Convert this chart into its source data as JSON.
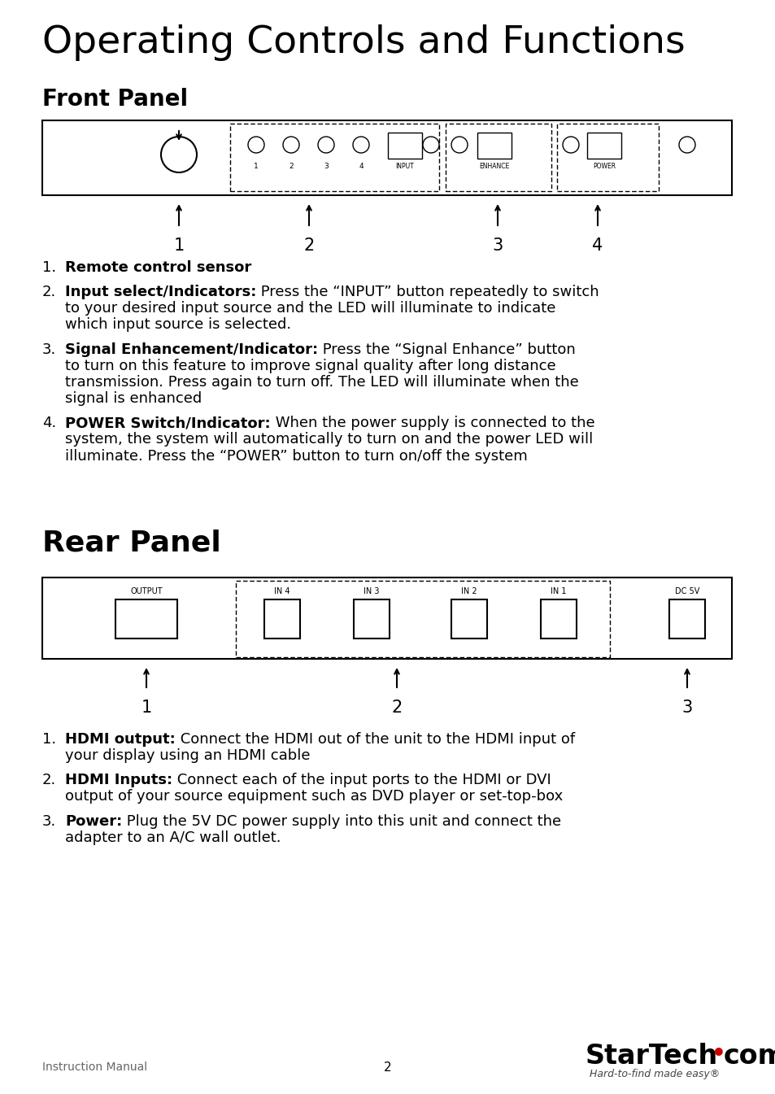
{
  "title": "Operating Controls and Functions",
  "subtitle": "Front Panel",
  "rear_panel_title": "Rear Panel",
  "bg_color": "#ffffff",
  "text_color": "#000000",
  "front_items": [
    {
      "num": "1.",
      "bold": "Remote control sensor",
      "rest": ""
    },
    {
      "num": "2.",
      "bold": "Input select/Indicators:",
      "rest": " Press the “INPUT” button repeatedly to switch\nto your desired input source and the LED will illuminate to indicate\nwhich input source is selected."
    },
    {
      "num": "3.",
      "bold": "Signal Enhancement/Indicator:",
      "rest": " Press the “Signal Enhance” button\nto turn on this feature to improve signal quality after long distance\ntransmission. Press again to turn off. The LED will illuminate when the\nsignal is enhanced"
    },
    {
      "num": "4.",
      "bold": "POWER Switch/Indicator:",
      "rest": " When the power supply is connected to the\nsystem, the system will automatically to turn on and the power LED will\nilluminate. Press the “POWER” button to turn on/off the system"
    }
  ],
  "rear_items": [
    {
      "num": "1.",
      "bold": "HDMI output:",
      "rest": " Connect the HDMI out of the unit to the HDMI input of\nyour display using an HDMI cable"
    },
    {
      "num": "2.",
      "bold": "HDMI Inputs:",
      "rest": " Connect each of the input ports to the HDMI or DVI\noutput of your source equipment such as DVD player or set-top-box"
    },
    {
      "num": "3.",
      "bold": "Power:",
      "rest": " Plug the 5V DC power supply into this unit and connect the\nadapter to an A/C wall outlet."
    }
  ],
  "footer_left": "Instruction Manual",
  "footer_center": "2",
  "footer_tagline": "Hard-to-find made easy®"
}
